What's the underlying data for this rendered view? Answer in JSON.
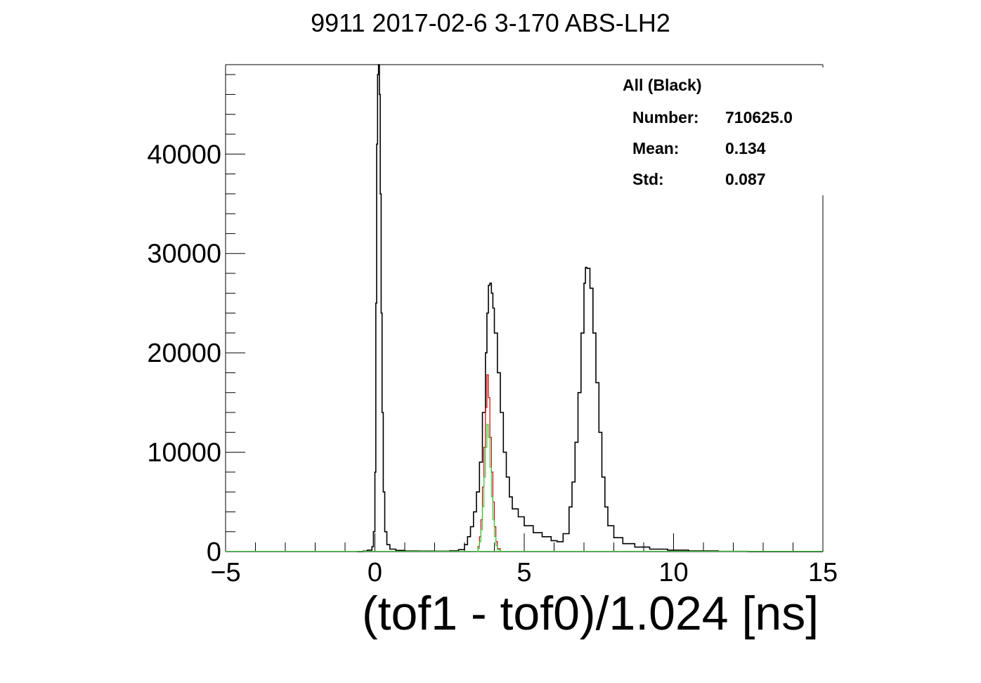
{
  "chart_data": {
    "type": "histogram",
    "title": "9911 2017-02-6 3-170 ABS-LH2",
    "xlabel": "(tof1 - tof0)/1.024 [ns]",
    "ylabel": "",
    "xlim": [
      -5,
      15
    ],
    "ylim": [
      0,
      49000
    ],
    "x_ticks": [
      "−5",
      "0",
      "5",
      "10",
      "15"
    ],
    "y_ticks": [
      "0",
      "10000",
      "20000",
      "30000",
      "40000"
    ],
    "grid": false,
    "stats": {
      "header": "All (Black)",
      "rows": [
        {
          "label": "Number:",
          "value": "710625.0"
        },
        {
          "label": "Mean:",
          "value": "0.134"
        },
        {
          "label": "Std:",
          "value": "0.087"
        }
      ],
      "placement": "top-right"
    },
    "series": [
      {
        "color": "#000000",
        "points": [
          [
            -0.6,
            0
          ],
          [
            -0.4,
            50
          ],
          [
            -0.25,
            150
          ],
          [
            -0.1,
            500
          ],
          [
            -0.05,
            2000
          ],
          [
            0.0,
            8000
          ],
          [
            0.03,
            25000
          ],
          [
            0.06,
            41000
          ],
          [
            0.09,
            48000
          ],
          [
            0.12,
            49000
          ],
          [
            0.15,
            46000
          ],
          [
            0.18,
            36000
          ],
          [
            0.21,
            24000
          ],
          [
            0.24,
            14000
          ],
          [
            0.28,
            6000
          ],
          [
            0.33,
            2000
          ],
          [
            0.4,
            700
          ],
          [
            0.5,
            250
          ],
          [
            0.7,
            120
          ],
          [
            1.0,
            60
          ],
          [
            1.5,
            50
          ],
          [
            2.0,
            40
          ],
          [
            2.5,
            80
          ],
          [
            2.8,
            200
          ],
          [
            3.0,
            700
          ],
          [
            3.1,
            1500
          ],
          [
            3.2,
            2500
          ],
          [
            3.3,
            4000
          ],
          [
            3.4,
            6000
          ],
          [
            3.5,
            9000
          ],
          [
            3.6,
            14000
          ],
          [
            3.7,
            20000
          ],
          [
            3.75,
            24000
          ],
          [
            3.8,
            26800
          ],
          [
            3.85,
            27000
          ],
          [
            3.9,
            26000
          ],
          [
            3.95,
            24500
          ],
          [
            4.0,
            22000
          ],
          [
            4.1,
            18000
          ],
          [
            4.2,
            14000
          ],
          [
            4.3,
            10000
          ],
          [
            4.4,
            7500
          ],
          [
            4.5,
            5500
          ],
          [
            4.6,
            4300
          ],
          [
            4.8,
            3500
          ],
          [
            5.0,
            2600
          ],
          [
            5.3,
            1900
          ],
          [
            5.6,
            1500
          ],
          [
            5.9,
            1100
          ],
          [
            6.1,
            1000
          ],
          [
            6.3,
            1800
          ],
          [
            6.5,
            4500
          ],
          [
            6.6,
            7000
          ],
          [
            6.7,
            11000
          ],
          [
            6.8,
            16000
          ],
          [
            6.9,
            22000
          ],
          [
            7.0,
            27000
          ],
          [
            7.05,
            28600
          ],
          [
            7.1,
            28500
          ],
          [
            7.2,
            26500
          ],
          [
            7.3,
            22000
          ],
          [
            7.4,
            17000
          ],
          [
            7.5,
            12000
          ],
          [
            7.6,
            7500
          ],
          [
            7.7,
            4500
          ],
          [
            7.8,
            2600
          ],
          [
            8.0,
            1400
          ],
          [
            8.3,
            800
          ],
          [
            8.7,
            450
          ],
          [
            9.2,
            250
          ],
          [
            9.8,
            150
          ],
          [
            10.5,
            70
          ],
          [
            11.5,
            20
          ],
          [
            12.5,
            5
          ],
          [
            15.0,
            0
          ]
        ]
      },
      {
        "color": "#cc0000",
        "points": [
          [
            3.4,
            0
          ],
          [
            3.45,
            500
          ],
          [
            3.5,
            1500
          ],
          [
            3.55,
            3200
          ],
          [
            3.6,
            6500
          ],
          [
            3.65,
            10500
          ],
          [
            3.7,
            14500
          ],
          [
            3.75,
            17800
          ],
          [
            3.8,
            15500
          ],
          [
            3.85,
            11500
          ],
          [
            3.9,
            8000
          ],
          [
            3.95,
            5000
          ],
          [
            4.0,
            2500
          ],
          [
            4.05,
            1000
          ],
          [
            4.1,
            300
          ],
          [
            4.2,
            0
          ]
        ]
      },
      {
        "color": "#33cc33",
        "points": [
          [
            3.4,
            0
          ],
          [
            3.45,
            300
          ],
          [
            3.5,
            1000
          ],
          [
            3.55,
            2200
          ],
          [
            3.6,
            4500
          ],
          [
            3.65,
            7500
          ],
          [
            3.7,
            10500
          ],
          [
            3.75,
            12800
          ],
          [
            3.8,
            11500
          ],
          [
            3.85,
            8500
          ],
          [
            3.9,
            5500
          ],
          [
            3.95,
            3200
          ],
          [
            4.0,
            1500
          ],
          [
            4.05,
            600
          ],
          [
            4.1,
            200
          ],
          [
            4.2,
            0
          ]
        ]
      }
    ]
  }
}
